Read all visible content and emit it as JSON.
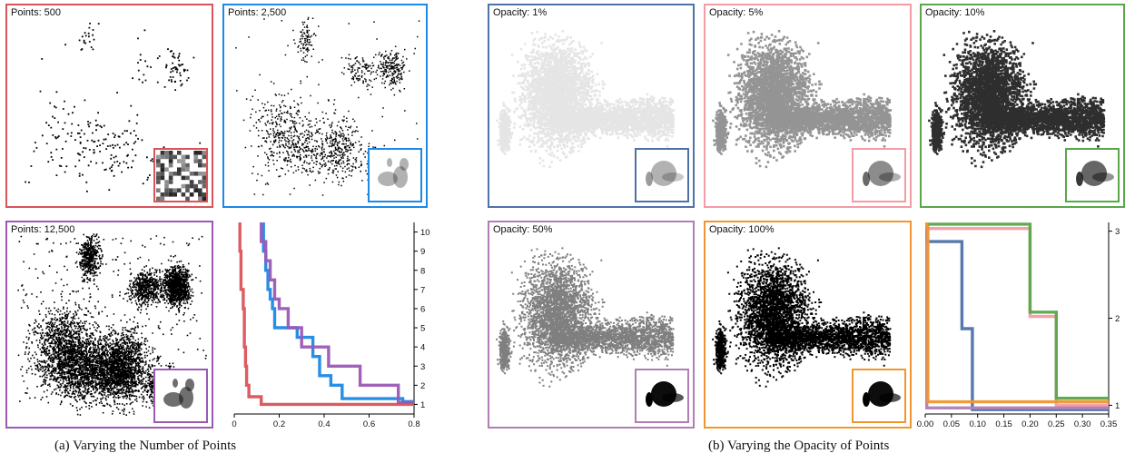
{
  "figure_a": {
    "caption": "(a) Varying the Number of Points",
    "panels": [
      {
        "label": "Points: 500",
        "color": "#d9545a",
        "points": 500
      },
      {
        "label": "Points: 2,500",
        "color": "#1e88e5",
        "points": 2500
      },
      {
        "label": "Points: 12,500",
        "color": "#9b59b6",
        "points": 12500
      }
    ]
  },
  "figure_b": {
    "caption": "(b) Varying the Opacity of Points",
    "panels": [
      {
        "label": "Opacity: 1%",
        "color": "#4e72a8",
        "opacity": 0.01
      },
      {
        "label": "Opacity: 5%",
        "color": "#f39ca5",
        "opacity": 0.05
      },
      {
        "label": "Opacity: 10%",
        "color": "#5aa64a",
        "opacity": 0.1
      },
      {
        "label": "Opacity: 50%",
        "color": "#b07eb5",
        "opacity": 0.5
      },
      {
        "label": "Opacity: 100%",
        "color": "#f0962e",
        "opacity": 1.0
      }
    ]
  },
  "chart_data": [
    {
      "type": "line",
      "xlim": [
        0,
        0.8
      ],
      "ylim": [
        0.5,
        10.5
      ],
      "x_ticks": [
        "0",
        "0.2",
        "0.4",
        "0.6",
        "0.8"
      ],
      "y_ticks": [
        "1",
        "2",
        "3",
        "4",
        "5",
        "6",
        "7",
        "8",
        "9",
        "10"
      ],
      "y_axis_side": "right",
      "series": [
        {
          "color": "#d9545a",
          "points": [
            [
              0.025,
              10.5
            ],
            [
              0.025,
              9
            ],
            [
              0.03,
              9
            ],
            [
              0.03,
              7
            ],
            [
              0.04,
              7
            ],
            [
              0.04,
              6
            ],
            [
              0.045,
              6
            ],
            [
              0.045,
              4
            ],
            [
              0.05,
              4
            ],
            [
              0.05,
              3
            ],
            [
              0.055,
              3
            ],
            [
              0.055,
              2
            ],
            [
              0.065,
              2
            ],
            [
              0.065,
              1.4
            ],
            [
              0.12,
              1.4
            ],
            [
              0.12,
              1
            ],
            [
              0.8,
              1
            ]
          ]
        },
        {
          "color": "#1e88e5",
          "points": [
            [
              0.13,
              10.5
            ],
            [
              0.13,
              9
            ],
            [
              0.14,
              9
            ],
            [
              0.14,
              8
            ],
            [
              0.15,
              8
            ],
            [
              0.15,
              7
            ],
            [
              0.16,
              7
            ],
            [
              0.16,
              6.5
            ],
            [
              0.17,
              6.5
            ],
            [
              0.17,
              6
            ],
            [
              0.18,
              6
            ],
            [
              0.18,
              5
            ],
            [
              0.28,
              5
            ],
            [
              0.28,
              4.5
            ],
            [
              0.35,
              4.5
            ],
            [
              0.35,
              3.5
            ],
            [
              0.38,
              3.5
            ],
            [
              0.38,
              2.5
            ],
            [
              0.43,
              2.5
            ],
            [
              0.43,
              2
            ],
            [
              0.48,
              2
            ],
            [
              0.48,
              1.3
            ],
            [
              0.75,
              1.3
            ],
            [
              0.75,
              1.15
            ],
            [
              0.8,
              1.15
            ]
          ]
        },
        {
          "color": "#9b59b6",
          "points": [
            [
              0.12,
              10.5
            ],
            [
              0.12,
              9.5
            ],
            [
              0.14,
              9.5
            ],
            [
              0.14,
              8.5
            ],
            [
              0.16,
              8.5
            ],
            [
              0.16,
              7.5
            ],
            [
              0.18,
              7.5
            ],
            [
              0.18,
              6.5
            ],
            [
              0.2,
              6.5
            ],
            [
              0.2,
              6
            ],
            [
              0.24,
              6
            ],
            [
              0.24,
              5
            ],
            [
              0.3,
              5
            ],
            [
              0.3,
              4
            ],
            [
              0.42,
              4
            ],
            [
              0.42,
              3
            ],
            [
              0.56,
              3
            ],
            [
              0.56,
              2
            ],
            [
              0.73,
              2
            ],
            [
              0.73,
              1.1
            ],
            [
              0.8,
              1.1
            ]
          ]
        }
      ]
    },
    {
      "type": "line",
      "xlim": [
        0,
        0.35
      ],
      "ylim": [
        0.9,
        3.1
      ],
      "x_ticks": [
        "0.00",
        "0.05",
        "0.10",
        "0.15",
        "0.20",
        "0.25",
        "0.30",
        "0.35"
      ],
      "y_ticks": [
        "1",
        "2",
        "3"
      ],
      "y_axis_side": "right",
      "series": [
        {
          "color": "#4e72a8",
          "points": [
            [
              0.003,
              3.1
            ],
            [
              0.003,
              2.88
            ],
            [
              0.07,
              2.88
            ],
            [
              0.07,
              1.88
            ],
            [
              0.09,
              1.88
            ],
            [
              0.09,
              0.95
            ],
            [
              0.35,
              0.95
            ]
          ]
        },
        {
          "color": "#f39ca5",
          "points": [
            [
              0.003,
              3.1
            ],
            [
              0.003,
              3.03
            ],
            [
              0.2,
              3.03
            ],
            [
              0.2,
              2.02
            ],
            [
              0.25,
              2.02
            ],
            [
              0.25,
              1.0
            ],
            [
              0.35,
              1.0
            ]
          ]
        },
        {
          "color": "#5aa64a",
          "points": [
            [
              0.003,
              3.1
            ],
            [
              0.003,
              3.08
            ],
            [
              0.2,
              3.08
            ],
            [
              0.2,
              2.07
            ],
            [
              0.25,
              2.07
            ],
            [
              0.25,
              1.08
            ],
            [
              0.35,
              1.08
            ]
          ]
        },
        {
          "color": "#b07eb5",
          "points": [
            [
              0.003,
              3.1
            ],
            [
              0.003,
              0.97
            ],
            [
              0.35,
              0.97
            ]
          ]
        },
        {
          "color": "#f0962e",
          "points": [
            [
              0.003,
              3.1
            ],
            [
              0.003,
              3.05
            ],
            [
              0.005,
              3.05
            ],
            [
              0.005,
              1.04
            ],
            [
              0.35,
              1.04
            ]
          ]
        }
      ]
    }
  ]
}
